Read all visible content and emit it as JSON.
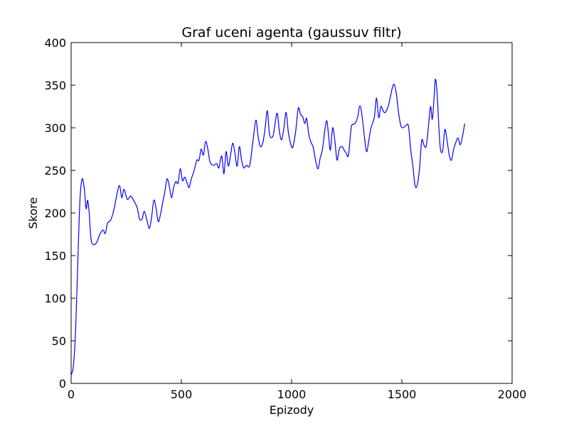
{
  "chart_data": {
    "type": "line",
    "title": "Graf uceni agenta (gaussuv filtr)",
    "xlabel": "Epizody",
    "ylabel": "Skore",
    "xlim": [
      0,
      2000
    ],
    "ylim": [
      0,
      400
    ],
    "x_ticks": [
      0,
      500,
      1000,
      1500,
      2000
    ],
    "y_ticks": [
      0,
      50,
      100,
      150,
      200,
      250,
      300,
      350,
      400
    ],
    "grid": false,
    "series": [
      {
        "color": "#0000ff",
        "points": [
          [
            0,
            10
          ],
          [
            10,
            20
          ],
          [
            20,
            60
          ],
          [
            30,
            140
          ],
          [
            40,
            215
          ],
          [
            50,
            240
          ],
          [
            60,
            228
          ],
          [
            68,
            205
          ],
          [
            75,
            215
          ],
          [
            82,
            200
          ],
          [
            90,
            170
          ],
          [
            100,
            163
          ],
          [
            115,
            165
          ],
          [
            130,
            175
          ],
          [
            145,
            180
          ],
          [
            155,
            176
          ],
          [
            165,
            188
          ],
          [
            180,
            192
          ],
          [
            195,
            205
          ],
          [
            210,
            225
          ],
          [
            220,
            232
          ],
          [
            230,
            218
          ],
          [
            240,
            228
          ],
          [
            255,
            216
          ],
          [
            270,
            220
          ],
          [
            285,
            214
          ],
          [
            300,
            206
          ],
          [
            310,
            193
          ],
          [
            322,
            193
          ],
          [
            332,
            202
          ],
          [
            345,
            190
          ],
          [
            355,
            182
          ],
          [
            365,
            195
          ],
          [
            375,
            215
          ],
          [
            385,
            206
          ],
          [
            395,
            190
          ],
          [
            405,
            198
          ],
          [
            415,
            212
          ],
          [
            425,
            225
          ],
          [
            435,
            240
          ],
          [
            445,
            232
          ],
          [
            455,
            218
          ],
          [
            465,
            230
          ],
          [
            475,
            237
          ],
          [
            485,
            235
          ],
          [
            495,
            252
          ],
          [
            505,
            238
          ],
          [
            515,
            242
          ],
          [
            525,
            236
          ],
          [
            535,
            230
          ],
          [
            545,
            240
          ],
          [
            558,
            250
          ],
          [
            570,
            262
          ],
          [
            580,
            262
          ],
          [
            590,
            275
          ],
          [
            600,
            268
          ],
          [
            610,
            284
          ],
          [
            620,
            275
          ],
          [
            630,
            260
          ],
          [
            645,
            256
          ],
          [
            660,
            258
          ],
          [
            670,
            253
          ],
          [
            683,
            267
          ],
          [
            693,
            246
          ],
          [
            703,
            272
          ],
          [
            713,
            255
          ],
          [
            723,
            268
          ],
          [
            733,
            282
          ],
          [
            743,
            270
          ],
          [
            753,
            255
          ],
          [
            763,
            278
          ],
          [
            773,
            262
          ],
          [
            783,
            253
          ],
          [
            795,
            256
          ],
          [
            810,
            256
          ],
          [
            825,
            285
          ],
          [
            838,
            309
          ],
          [
            848,
            290
          ],
          [
            858,
            278
          ],
          [
            870,
            283
          ],
          [
            880,
            300
          ],
          [
            890,
            320
          ],
          [
            900,
            292
          ],
          [
            915,
            290
          ],
          [
            925,
            305
          ],
          [
            935,
            317
          ],
          [
            945,
            295
          ],
          [
            955,
            286
          ],
          [
            965,
            300
          ],
          [
            975,
            318
          ],
          [
            985,
            295
          ],
          [
            995,
            282
          ],
          [
            1005,
            277
          ],
          [
            1018,
            295
          ],
          [
            1030,
            323
          ],
          [
            1040,
            316
          ],
          [
            1050,
            313
          ],
          [
            1060,
            305
          ],
          [
            1068,
            311
          ],
          [
            1078,
            292
          ],
          [
            1088,
            283
          ],
          [
            1098,
            277
          ],
          [
            1110,
            260
          ],
          [
            1120,
            252
          ],
          [
            1130,
            265
          ],
          [
            1140,
            275
          ],
          [
            1152,
            300
          ],
          [
            1160,
            308
          ],
          [
            1168,
            290
          ],
          [
            1176,
            274
          ],
          [
            1186,
            300
          ],
          [
            1196,
            285
          ],
          [
            1206,
            262
          ],
          [
            1216,
            275
          ],
          [
            1228,
            278
          ],
          [
            1238,
            274
          ],
          [
            1248,
            270
          ],
          [
            1258,
            268
          ],
          [
            1270,
            300
          ],
          [
            1280,
            304
          ],
          [
            1290,
            306
          ],
          [
            1300,
            313
          ],
          [
            1310,
            326
          ],
          [
            1320,
            313
          ],
          [
            1330,
            290
          ],
          [
            1340,
            272
          ],
          [
            1350,
            285
          ],
          [
            1360,
            300
          ],
          [
            1375,
            312
          ],
          [
            1385,
            335
          ],
          [
            1395,
            312
          ],
          [
            1405,
            325
          ],
          [
            1415,
            320
          ],
          [
            1425,
            318
          ],
          [
            1440,
            327
          ],
          [
            1455,
            345
          ],
          [
            1465,
            351
          ],
          [
            1475,
            340
          ],
          [
            1485,
            318
          ],
          [
            1495,
            303
          ],
          [
            1505,
            300
          ],
          [
            1520,
            303
          ],
          [
            1530,
            302
          ],
          [
            1540,
            275
          ],
          [
            1550,
            255
          ],
          [
            1560,
            232
          ],
          [
            1570,
            233
          ],
          [
            1580,
            252
          ],
          [
            1590,
            285
          ],
          [
            1600,
            280
          ],
          [
            1610,
            278
          ],
          [
            1620,
            300
          ],
          [
            1630,
            325
          ],
          [
            1638,
            310
          ],
          [
            1646,
            335
          ],
          [
            1652,
            357
          ],
          [
            1660,
            340
          ],
          [
            1668,
            300
          ],
          [
            1675,
            275
          ],
          [
            1685,
            273
          ],
          [
            1695,
            298
          ],
          [
            1705,
            285
          ],
          [
            1715,
            268
          ],
          [
            1725,
            262
          ],
          [
            1735,
            275
          ],
          [
            1745,
            283
          ],
          [
            1755,
            288
          ],
          [
            1765,
            280
          ],
          [
            1775,
            290
          ],
          [
            1785,
            305
          ]
        ]
      }
    ]
  }
}
